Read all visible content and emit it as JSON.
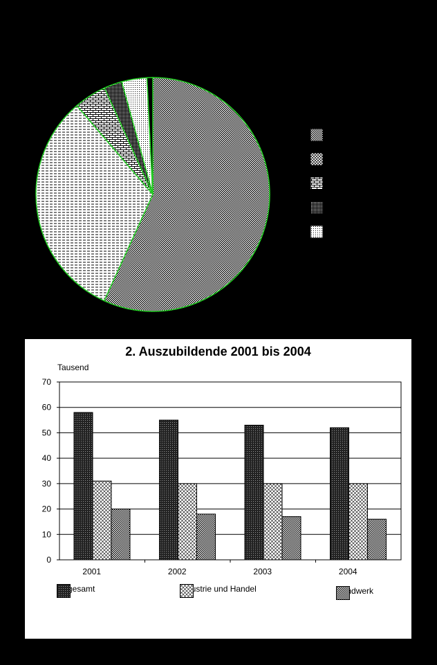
{
  "chart_data": [
    {
      "type": "pie",
      "title": "",
      "slices": [
        {
          "value": 57,
          "color": "#ffffff",
          "pattern": "checker"
        },
        {
          "value": 32,
          "color": "#ffffff",
          "pattern": "hlines"
        },
        {
          "value": 4.5,
          "color": "#ffffff",
          "pattern": "bricks"
        },
        {
          "value": 2.5,
          "color": "#ffffff",
          "pattern": "dense"
        },
        {
          "value": 3.5,
          "color": "#ffffff",
          "pattern": "dots"
        },
        {
          "value": 0.8,
          "color": "#000000",
          "pattern": "solid"
        }
      ],
      "legend_patterns": [
        "checker",
        "diag",
        "bricks",
        "dense",
        "dots"
      ],
      "edge_color": "#22cc22"
    },
    {
      "type": "bar",
      "title": "2. Auszubildende 2001 bis 2004",
      "unit_label": "Tausend",
      "categories": [
        "2001",
        "2002",
        "2003",
        "2004"
      ],
      "series": [
        {
          "name": "Insgesamt",
          "values": [
            58,
            55,
            53,
            52
          ],
          "pattern": "crosshatch"
        },
        {
          "name": "Industrie und Handel",
          "values": [
            31,
            30,
            30,
            30
          ],
          "pattern": "diag"
        },
        {
          "name": "Handwerk",
          "values": [
            20,
            18,
            17,
            16
          ],
          "pattern": "checker"
        }
      ],
      "ylim": [
        0,
        70
      ],
      "yticks": [
        "0",
        "10",
        "20",
        "30",
        "40",
        "50",
        "60",
        "70"
      ],
      "grid": true,
      "legend_position": "bottom"
    }
  ]
}
